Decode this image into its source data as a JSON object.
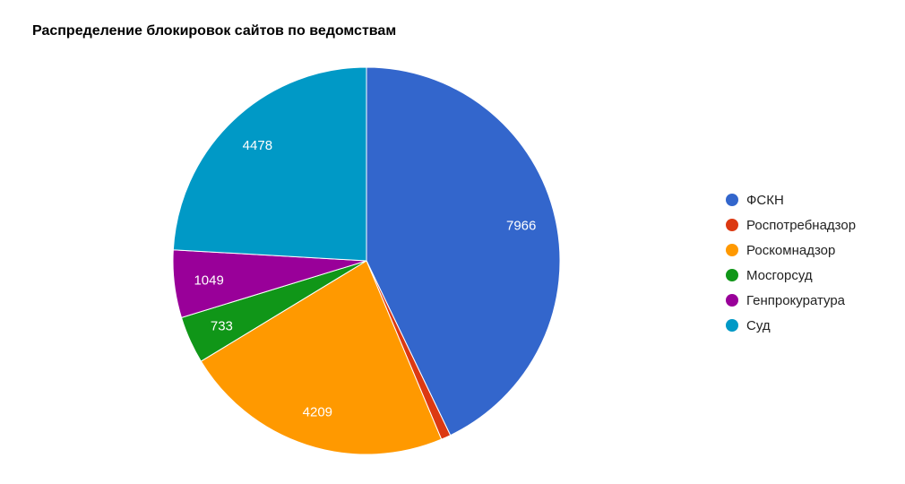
{
  "chart_data": {
    "type": "pie",
    "title": "Распределение блокировок сайтов по ведомствам",
    "legend_position": "right",
    "slices": [
      {
        "name": "ФСКН",
        "value": 7966,
        "label": "7966",
        "color": "#3366cc"
      },
      {
        "name": "Роспотребнадзор",
        "value": 150,
        "label": "",
        "color": "#dc3912"
      },
      {
        "name": "Роскомнадзор",
        "value": 4209,
        "label": "4209",
        "color": "#ff9900"
      },
      {
        "name": "Мосгорсуд",
        "value": 733,
        "label": "733",
        "color": "#109618"
      },
      {
        "name": "Генпрокуратура",
        "value": 1049,
        "label": "1049",
        "color": "#990099"
      },
      {
        "name": "Суд",
        "value": 4478,
        "label": "4478",
        "color": "#0099c6"
      }
    ]
  }
}
